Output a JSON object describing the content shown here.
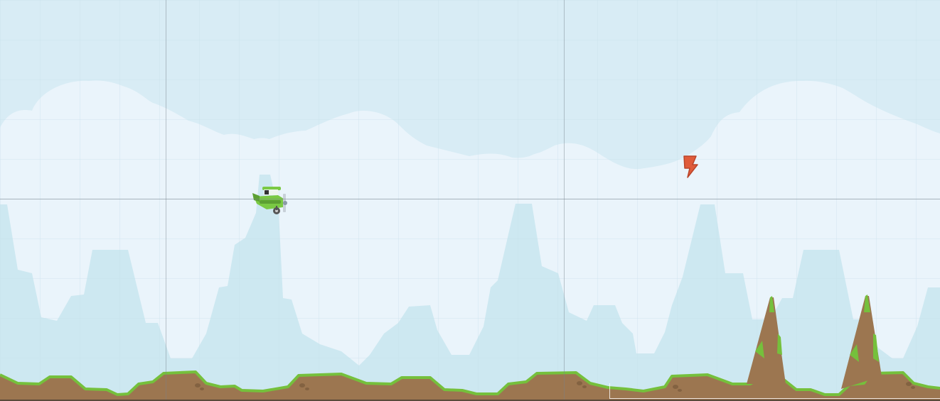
{
  "scene": {
    "colors": {
      "sky": "#d8ecf5",
      "cloud": "#eaf4fb",
      "mountain": "#cde8f1",
      "ground": "#9c7650",
      "grass": "#75c03c",
      "grass_light": "#8fd15a",
      "rock": "#8a6a48"
    },
    "player": {
      "name": "plane-green",
      "color": "#7ac943"
    },
    "pickup": {
      "name": "lightning-powerup",
      "icon": "lightning-icon",
      "color": "#e05b3a"
    },
    "obstacles": [
      {
        "name": "rock-spike",
        "count": 2
      }
    ],
    "grid_visible": true
  }
}
